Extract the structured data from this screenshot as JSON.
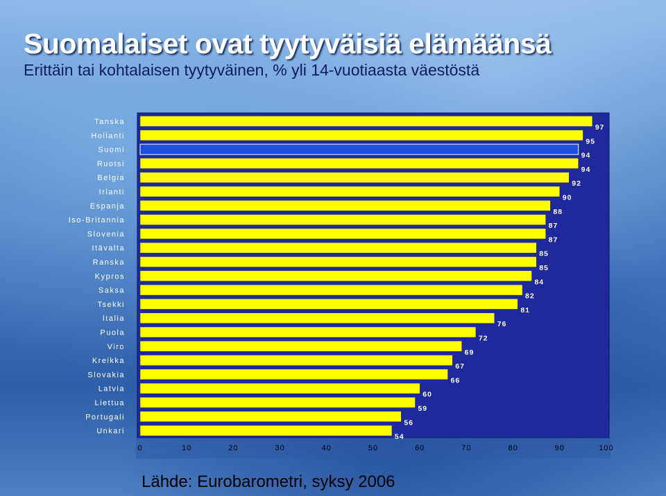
{
  "header": {
    "title": "Suomalaiset ovat tyytyväisiä elämäänsä",
    "subtitle": "Erittäin tai kohtalaisen tyytyväinen, % yli 14-vuotiaasta väestöstä"
  },
  "footer": {
    "source": "Lähde: Eurobarometri, syksy 2006"
  },
  "colors": {
    "plot_background": "#1e2a9c",
    "bar": "#ffff00",
    "highlight_bar": "#1c4fe0",
    "axis_band": "#2f59a8"
  },
  "chart_data": {
    "type": "bar",
    "orientation": "horizontal",
    "title": "Suomalaiset ovat tyytyväisiä elämäänsä",
    "subtitle": "Erittäin tai kohtalaisen tyytyväinen, % yli 14-vuotiaasta väestöstä",
    "categories": [
      "Tanska",
      "Hollanti",
      "Suomi",
      "Ruotsi",
      "Belgia",
      "Irlanti",
      "Espanja",
      "Iso-Britannia",
      "Slovenia",
      "Itävalta",
      "Ranska",
      "Kypros",
      "Saksa",
      "Tsekki",
      "Italia",
      "Puola",
      "Viro",
      "Kreikka",
      "Slovakia",
      "Latvia",
      "Liettua",
      "Portugali",
      "Unkari"
    ],
    "values": [
      97,
      95,
      94,
      94,
      92,
      90,
      88,
      87,
      87,
      85,
      85,
      84,
      82,
      81,
      76,
      72,
      69,
      67,
      66,
      60,
      59,
      56,
      54
    ],
    "highlight": "Suomi",
    "xlim": [
      0,
      100
    ],
    "xticks": [
      0,
      10,
      20,
      30,
      40,
      50,
      60,
      70,
      80,
      90,
      100
    ],
    "data_labels": true,
    "grid": false,
    "legend": "none"
  }
}
